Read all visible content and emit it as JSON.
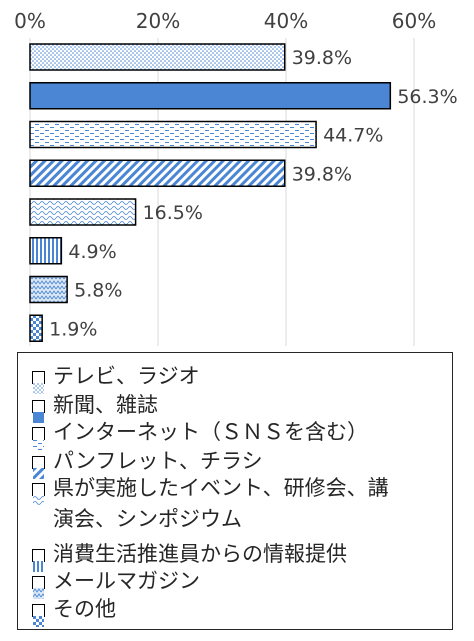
{
  "chart_data": {
    "type": "bar",
    "orientation": "horizontal",
    "xlim": [
      0,
      60
    ],
    "x_ticks": [
      "0%",
      "20%",
      "40%",
      "60%"
    ],
    "grid": true,
    "legend_position": "bottom",
    "categories": [
      "テレビ、ラジオ",
      "新聞、雑誌",
      "インターネット（ＳＮＳを含む）",
      "パンフレット、チラシ",
      "県が実施したイベント、研修会、講\n演会、シンポジウム",
      "消費生活推進員からの情報提供",
      "メールマガジン",
      "その他"
    ],
    "values": [
      39.8,
      56.3,
      44.7,
      39.8,
      16.5,
      4.9,
      5.8,
      1.9
    ],
    "value_labels": [
      "39.8%",
      "56.3%",
      "44.7%",
      "39.8%",
      "16.5%",
      "4.9%",
      "5.8%",
      "1.9%"
    ],
    "patterns": [
      "dots",
      "solid",
      "dashes",
      "diagonal",
      "wave",
      "vertical",
      "zigzag",
      "checker"
    ],
    "colors": {
      "accent": "#4a86d4",
      "light": "#dce8f6",
      "bar_border": "#000000",
      "grid": "#d9d9d9"
    }
  }
}
